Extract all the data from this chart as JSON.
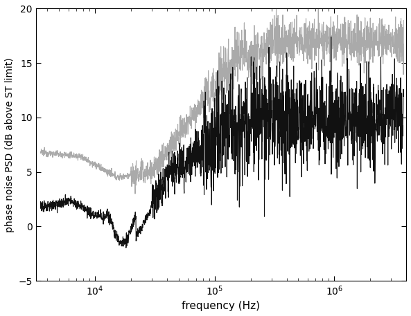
{
  "title": "",
  "xlabel": "frequency (Hz)",
  "ylabel": "phase noise PSD (dB above ST limit)",
  "xlim_log": [
    3200,
    4000000
  ],
  "ylim": [
    -5,
    20
  ],
  "yticks": [
    -5,
    0,
    5,
    10,
    15,
    20
  ],
  "background_color": "#ffffff",
  "line1_color": "#aaaaaa",
  "line2_color": "#111111",
  "line1_lw": 0.8,
  "line2_lw": 0.8,
  "seed": 12345
}
